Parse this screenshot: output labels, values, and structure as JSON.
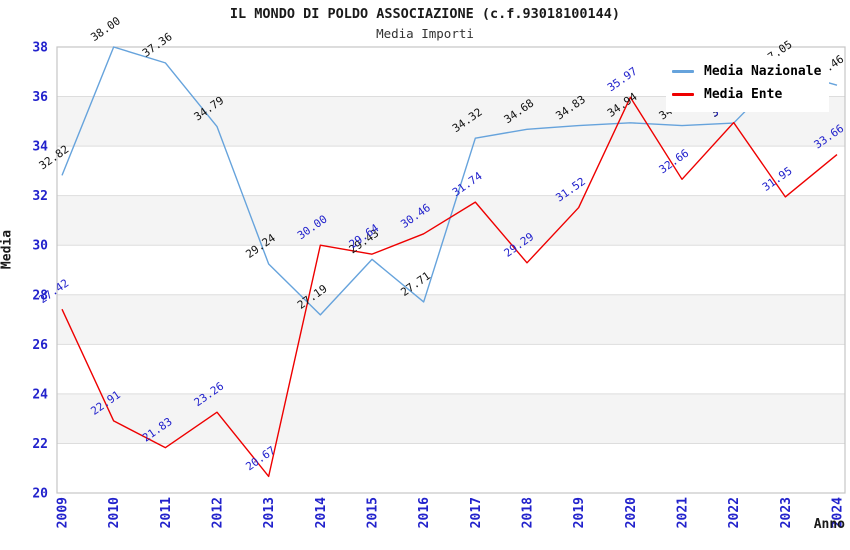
{
  "header": {
    "title": "IL MONDO DI POLDO ASSOCIAZIONE (c.f.93018100144)",
    "subtitle": "Media Importi"
  },
  "legend": {
    "items": [
      {
        "label": "Media Nazionale",
        "color": "#66A3DC"
      },
      {
        "label": "Media Ente",
        "color": "#EE0000"
      }
    ]
  },
  "chart_data": {
    "type": "line",
    "title": "IL MONDO DI POLDO ASSOCIAZIONE (c.f.93018100144)",
    "subtitle": "Media Importi",
    "xlabel": "Anno",
    "ylabel": "Media",
    "x": [
      2009,
      2010,
      2011,
      2012,
      2013,
      2014,
      2015,
      2016,
      2017,
      2018,
      2019,
      2020,
      2021,
      2022,
      2023,
      2024
    ],
    "series": [
      {
        "name": "Media Nazionale",
        "color": "#66A3DC",
        "label_color": "#111111",
        "values": [
          32.82,
          38.0,
          37.36,
          34.79,
          29.24,
          27.19,
          29.43,
          27.71,
          34.32,
          34.68,
          34.83,
          34.94,
          34.83,
          34.93,
          37.05,
          36.46
        ]
      },
      {
        "name": "Media Ente",
        "color": "#EE0000",
        "label_color": "#2222CC",
        "values": [
          27.42,
          22.91,
          21.83,
          23.26,
          20.67,
          30.0,
          29.64,
          30.46,
          31.74,
          29.29,
          31.52,
          35.97,
          32.66,
          34.95,
          31.95,
          33.66
        ]
      }
    ],
    "ylim": [
      20,
      38
    ],
    "ytick_step": 2,
    "yticks": [
      20,
      22,
      24,
      26,
      28,
      30,
      32,
      34,
      36,
      38
    ],
    "grid": true,
    "band_fill": "alternating",
    "legend_position": "top-right",
    "axis_text_color": "#2222CC",
    "band_color": "#f4f4f4",
    "grid_color": "#dddddd",
    "border_color": "#c6c6c6"
  }
}
